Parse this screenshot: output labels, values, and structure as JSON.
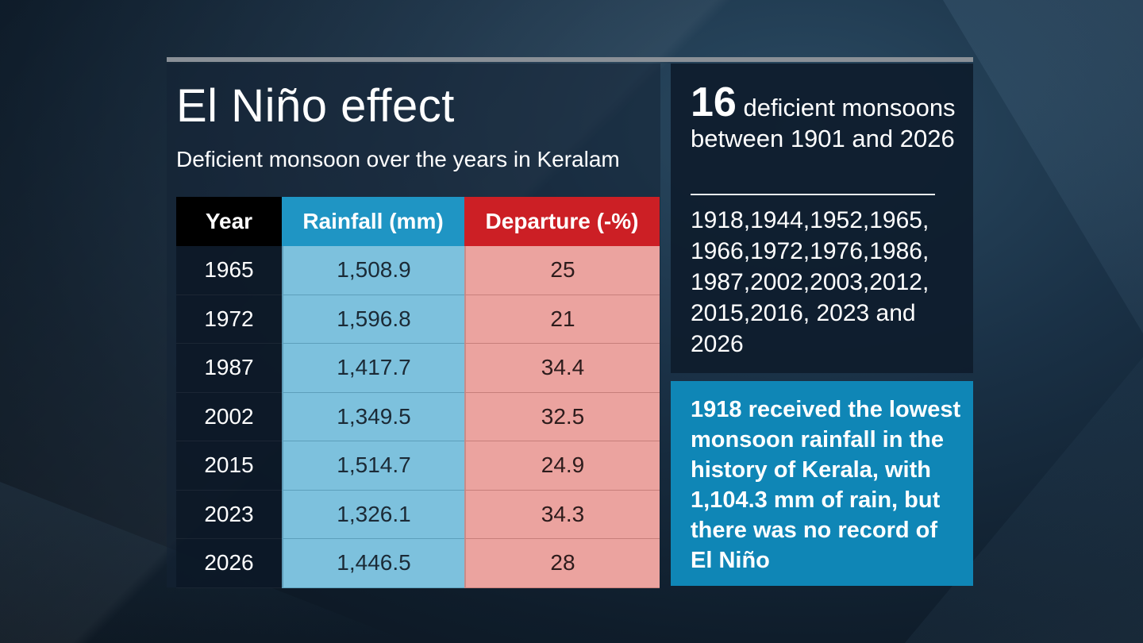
{
  "title": "El Niño effect",
  "subtitle": "Deficient monsoon over the years in Keralam",
  "colors": {
    "year_header": "#000000",
    "rainfall_header": "#1f95c4",
    "departure_header": "#cc1f25",
    "rainfall_cells": "#7dc1dd",
    "departure_cells": "#eba39f",
    "note_box": "#0f86b6"
  },
  "chart_data": {
    "type": "table",
    "columns": [
      "Year",
      "Rainfall (mm)",
      "Departure (-%)"
    ],
    "rows": [
      [
        "1965",
        "1,508.9",
        "25"
      ],
      [
        "1972",
        "1,596.8",
        "21"
      ],
      [
        "1987",
        "1,417.7",
        "34.4"
      ],
      [
        "2002",
        "1,349.5",
        "32.5"
      ],
      [
        "2015",
        "1,514.7",
        "24.9"
      ],
      [
        "2023",
        "1,326.1",
        "34.3"
      ],
      [
        "2026",
        "1,446.5",
        "28"
      ]
    ]
  },
  "side_panel": {
    "count": "16",
    "heading_rest": " deficient monsoons between 1901 and 2026",
    "years_list": "1918,1944,1952,1965, 1966,1972,1976,1986, 1987,2002,2003,2012, 2015,2016, 2023 and 2026"
  },
  "note": "1918 received the lowest monsoon rainfall in the history of Kerala, with 1,104.3 mm of rain, but there was no record of El Niño"
}
